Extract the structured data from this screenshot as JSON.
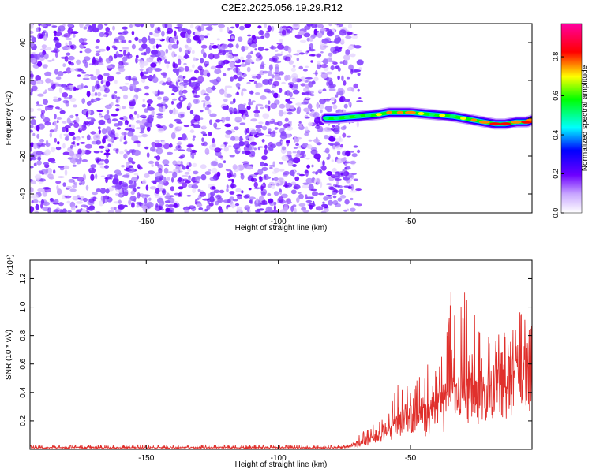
{
  "title": "C2E2.2025.056.19.29.R12",
  "chart_data": [
    {
      "type": "heatmap",
      "xlabel": "Height of straight line (km)",
      "ylabel": "Frequency (Hz)",
      "xlim": [
        -194,
        -4
      ],
      "ylim": [
        -50,
        50
      ],
      "xticks": [
        -150,
        -100,
        -50
      ],
      "yticks": [
        -40,
        -20,
        0,
        20,
        40
      ],
      "colorbar": {
        "label": "Normalized spectral amplitude",
        "range": [
          0.0,
          0.97
        ],
        "ticks": [
          0.0,
          0.2,
          0.4,
          0.6,
          0.8
        ]
      },
      "noise_region": {
        "x_range": [
          -194,
          -69
        ],
        "dominant_amplitude": 0.12
      },
      "signal_trace": {
        "x": [
          -82,
          -78,
          -74,
          -70,
          -66,
          -62,
          -58,
          -54,
          -50,
          -46,
          -42,
          -38,
          -34,
          -30,
          -26,
          -22,
          -18,
          -14,
          -10,
          -6,
          -4
        ],
        "frequency": [
          0,
          0,
          0.5,
          1,
          1.5,
          2,
          3,
          3,
          3,
          2.5,
          2,
          1.5,
          1,
          0,
          -1,
          -2,
          -3,
          -3,
          -2,
          -2,
          -1
        ],
        "peak_amplitude": [
          0.2,
          0.4,
          0.5,
          0.6,
          0.7,
          0.75,
          0.85,
          0.85,
          0.9,
          0.8,
          0.7,
          0.75,
          0.7,
          0.8,
          0.85,
          0.9,
          0.95,
          0.95,
          0.9,
          0.95,
          0.9
        ]
      }
    },
    {
      "type": "line",
      "xlabel": "Height of straight line (km)",
      "ylabel": "SNR (10 * v/v)",
      "y_multiplier": "(x10⁴)",
      "xlim": [
        -194,
        -4
      ],
      "ylim": [
        0,
        1.33
      ],
      "xticks": [
        -150,
        -100,
        -50
      ],
      "yticks": [
        0.2,
        0.4,
        0.6,
        0.8,
        1.0,
        1.2
      ],
      "series": [
        {
          "color": "#e0302c",
          "x": [
            -194,
            -180,
            -160,
            -140,
            -120,
            -100,
            -80,
            -74,
            -70,
            -66,
            -62,
            -58,
            -55,
            -52,
            -50,
            -47,
            -44,
            -42,
            -40,
            -38,
            -36,
            -34,
            -32,
            -30,
            -28,
            -26,
            -24,
            -22,
            -20,
            -18,
            -16,
            -14,
            -12,
            -10,
            -8,
            -6,
            -4
          ],
          "baseline": [
            0.01,
            0.01,
            0.01,
            0.01,
            0.01,
            0.01,
            0.01,
            0.015,
            0.04,
            0.08,
            0.1,
            0.14,
            0.2,
            0.25,
            0.26,
            0.22,
            0.28,
            0.25,
            0.3,
            0.32,
            0.33,
            0.35,
            0.38,
            0.4,
            0.42,
            0.44,
            0.45,
            0.46,
            0.47,
            0.48,
            0.5,
            0.52,
            0.55,
            0.58,
            0.62,
            0.66,
            0.7
          ],
          "peaks": [
            0.03,
            0.03,
            0.03,
            0.03,
            0.03,
            0.03,
            0.03,
            0.04,
            0.1,
            0.15,
            0.22,
            0.3,
            0.45,
            0.5,
            0.42,
            0.55,
            0.6,
            0.82,
            0.5,
            0.7,
            0.9,
            1.33,
            0.9,
            1.1,
            1.22,
            1.0,
            0.9,
            0.75,
            0.8,
            0.85,
            0.95,
            0.8,
            0.78,
            0.95,
            1.05,
            0.85,
            0.9
          ]
        }
      ]
    }
  ]
}
